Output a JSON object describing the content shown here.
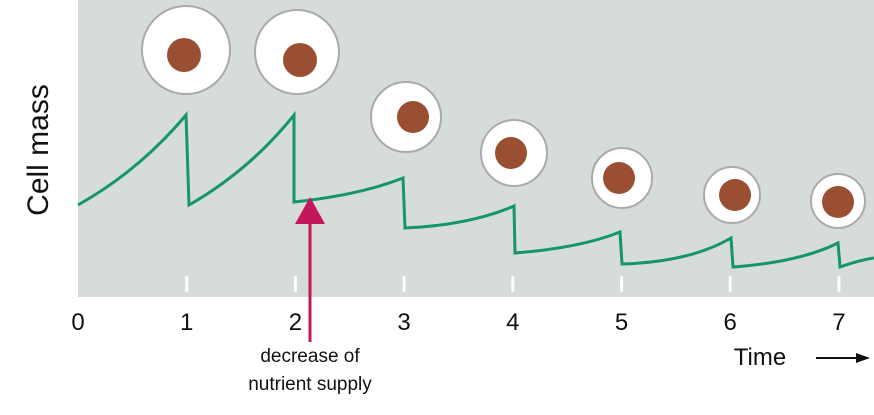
{
  "y_axis_label": "Cell mass",
  "x_axis_label": "Time",
  "x_tick_labels": [
    "0",
    "1",
    "2",
    "3",
    "4",
    "5",
    "6",
    "7"
  ],
  "annotation": {
    "line1": "decrease of",
    "line2": "nutrient supply"
  }
}
